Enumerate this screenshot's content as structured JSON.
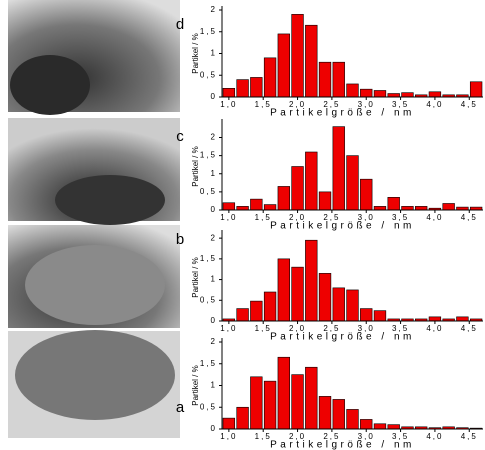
{
  "chart_data": [
    {
      "type": "histogram",
      "label": "d",
      "xlabel": "Partikelgröße / nm",
      "ylabel": "Partikel / %",
      "color": "#ee0000",
      "bins": [
        0.9,
        1.1,
        1.3,
        1.5,
        1.7,
        1.9,
        2.1,
        2.3,
        2.5,
        2.7,
        2.9,
        3.1,
        3.3,
        3.5,
        3.7,
        3.9,
        4.1,
        4.3,
        4.5,
        4.7
      ],
      "values": [
        0.2,
        0.4,
        0.45,
        0.9,
        1.45,
        1.9,
        1.65,
        0.8,
        0.8,
        0.3,
        0.18,
        0.15,
        0.08,
        0.1,
        0.05,
        0.12,
        0.05,
        0.05,
        0.35
      ],
      "xlim": [
        0.9,
        4.7
      ],
      "ylim": [
        0,
        2.0
      ],
      "xticks": [
        {
          "value": 1.0,
          "label": "1,0"
        },
        {
          "value": 1.5,
          "label": "1,5"
        },
        {
          "value": 2.0,
          "label": "2,0"
        },
        {
          "value": 2.5,
          "label": "2,5"
        },
        {
          "value": 3.0,
          "label": "3,0"
        },
        {
          "value": 3.5,
          "label": "3,5"
        },
        {
          "value": 4.0,
          "label": "4,0"
        },
        {
          "value": 4.5,
          "label": "4,5"
        }
      ],
      "yticks": [
        0,
        {
          "value": 0.5,
          "label": "0,5"
        },
        1,
        {
          "value": 1.5,
          "label": "1,5"
        },
        2
      ]
    },
    {
      "type": "histogram",
      "label": "c",
      "xlabel": "Partikelgröße / nm",
      "ylabel": "Partikel / %",
      "color": "#ee0000",
      "bins": [
        0.9,
        1.1,
        1.3,
        1.5,
        1.7,
        1.9,
        2.1,
        2.3,
        2.5,
        2.7,
        2.9,
        3.1,
        3.3,
        3.5,
        3.7,
        3.9,
        4.1,
        4.3,
        4.5,
        4.7
      ],
      "values": [
        0.2,
        0.1,
        0.3,
        0.15,
        0.65,
        1.2,
        1.6,
        0.5,
        2.3,
        1.5,
        0.85,
        0.1,
        0.35,
        0.1,
        0.1,
        0.05,
        0.18,
        0.08,
        0.08
      ],
      "xlim": [
        0.9,
        4.7
      ],
      "ylim": [
        0,
        2.4
      ],
      "xticks": [
        {
          "value": 1.0,
          "label": "1,0"
        },
        {
          "value": 1.5,
          "label": "1,5"
        },
        {
          "value": 2.0,
          "label": "2,0"
        },
        {
          "value": 2.5,
          "label": "2,5"
        },
        {
          "value": 3.0,
          "label": "3,0"
        },
        {
          "value": 3.5,
          "label": "3,5"
        },
        {
          "value": 4.0,
          "label": "4,0"
        },
        {
          "value": 4.5,
          "label": "4,5"
        }
      ],
      "yticks": [
        0,
        {
          "value": 0.5,
          "label": "0,5"
        },
        1,
        {
          "value": 1.5,
          "label": "1,5"
        },
        2
      ]
    },
    {
      "type": "histogram",
      "label": "b",
      "xlabel": "Partikelgröße / nm",
      "ylabel": "Partikel / %",
      "color": "#ee0000",
      "bins": [
        0.9,
        1.1,
        1.3,
        1.5,
        1.7,
        1.9,
        2.1,
        2.3,
        2.5,
        2.7,
        2.9,
        3.1,
        3.3,
        3.5,
        3.7,
        3.9,
        4.1,
        4.3,
        4.5,
        4.7
      ],
      "values": [
        0.05,
        0.3,
        0.48,
        0.7,
        1.5,
        1.3,
        1.95,
        1.15,
        0.8,
        0.75,
        0.3,
        0.25,
        0.05,
        0.05,
        0.05,
        0.1,
        0.05,
        0.1,
        0.05
      ],
      "xlim": [
        0.9,
        4.7
      ],
      "ylim": [
        0,
        2.1
      ],
      "xticks": [
        {
          "value": 1.0,
          "label": "1,0"
        },
        {
          "value": 1.5,
          "label": "1,5"
        },
        {
          "value": 2.0,
          "label": "2,0"
        },
        {
          "value": 2.5,
          "label": "2,5"
        },
        {
          "value": 3.0,
          "label": "3,0"
        },
        {
          "value": 3.5,
          "label": "3,5"
        },
        {
          "value": 4.0,
          "label": "4,0"
        },
        {
          "value": 4.5,
          "label": "4,5"
        }
      ],
      "yticks": [
        0,
        {
          "value": 0.5,
          "label": "0,5"
        },
        1,
        {
          "value": 1.5,
          "label": "1,5"
        },
        2
      ]
    },
    {
      "type": "histogram",
      "label": "a",
      "xlabel": "Partikelgröße / nm",
      "ylabel": "Partikel / %",
      "color": "#ee0000",
      "bins": [
        0.9,
        1.1,
        1.3,
        1.5,
        1.7,
        1.9,
        2.1,
        2.3,
        2.5,
        2.7,
        2.9,
        3.1,
        3.3,
        3.5,
        3.7,
        3.9,
        4.1,
        4.3,
        4.5,
        4.7
      ],
      "values": [
        0.25,
        0.5,
        1.2,
        1.1,
        1.65,
        1.25,
        1.42,
        0.75,
        0.68,
        0.45,
        0.22,
        0.12,
        0.1,
        0.05,
        0.05,
        0.03,
        0.05,
        0.03,
        0.02
      ],
      "xlim": [
        0.9,
        4.7
      ],
      "ylim": [
        0,
        2.0
      ],
      "xticks": [
        {
          "value": 1.0,
          "label": "1,0"
        },
        {
          "value": 1.5,
          "label": "1,5"
        },
        {
          "value": 2.0,
          "label": "2,0"
        },
        {
          "value": 2.5,
          "label": "2,5"
        },
        {
          "value": 3.0,
          "label": "3,0"
        },
        {
          "value": 3.5,
          "label": "3,5"
        },
        {
          "value": 4.0,
          "label": "4,0"
        },
        {
          "value": 4.5,
          "label": "4,5"
        }
      ],
      "yticks": [
        0,
        {
          "value": 0.5,
          "label": "0,5"
        },
        1,
        {
          "value": 1.5,
          "label": "1,5"
        },
        2
      ]
    }
  ]
}
